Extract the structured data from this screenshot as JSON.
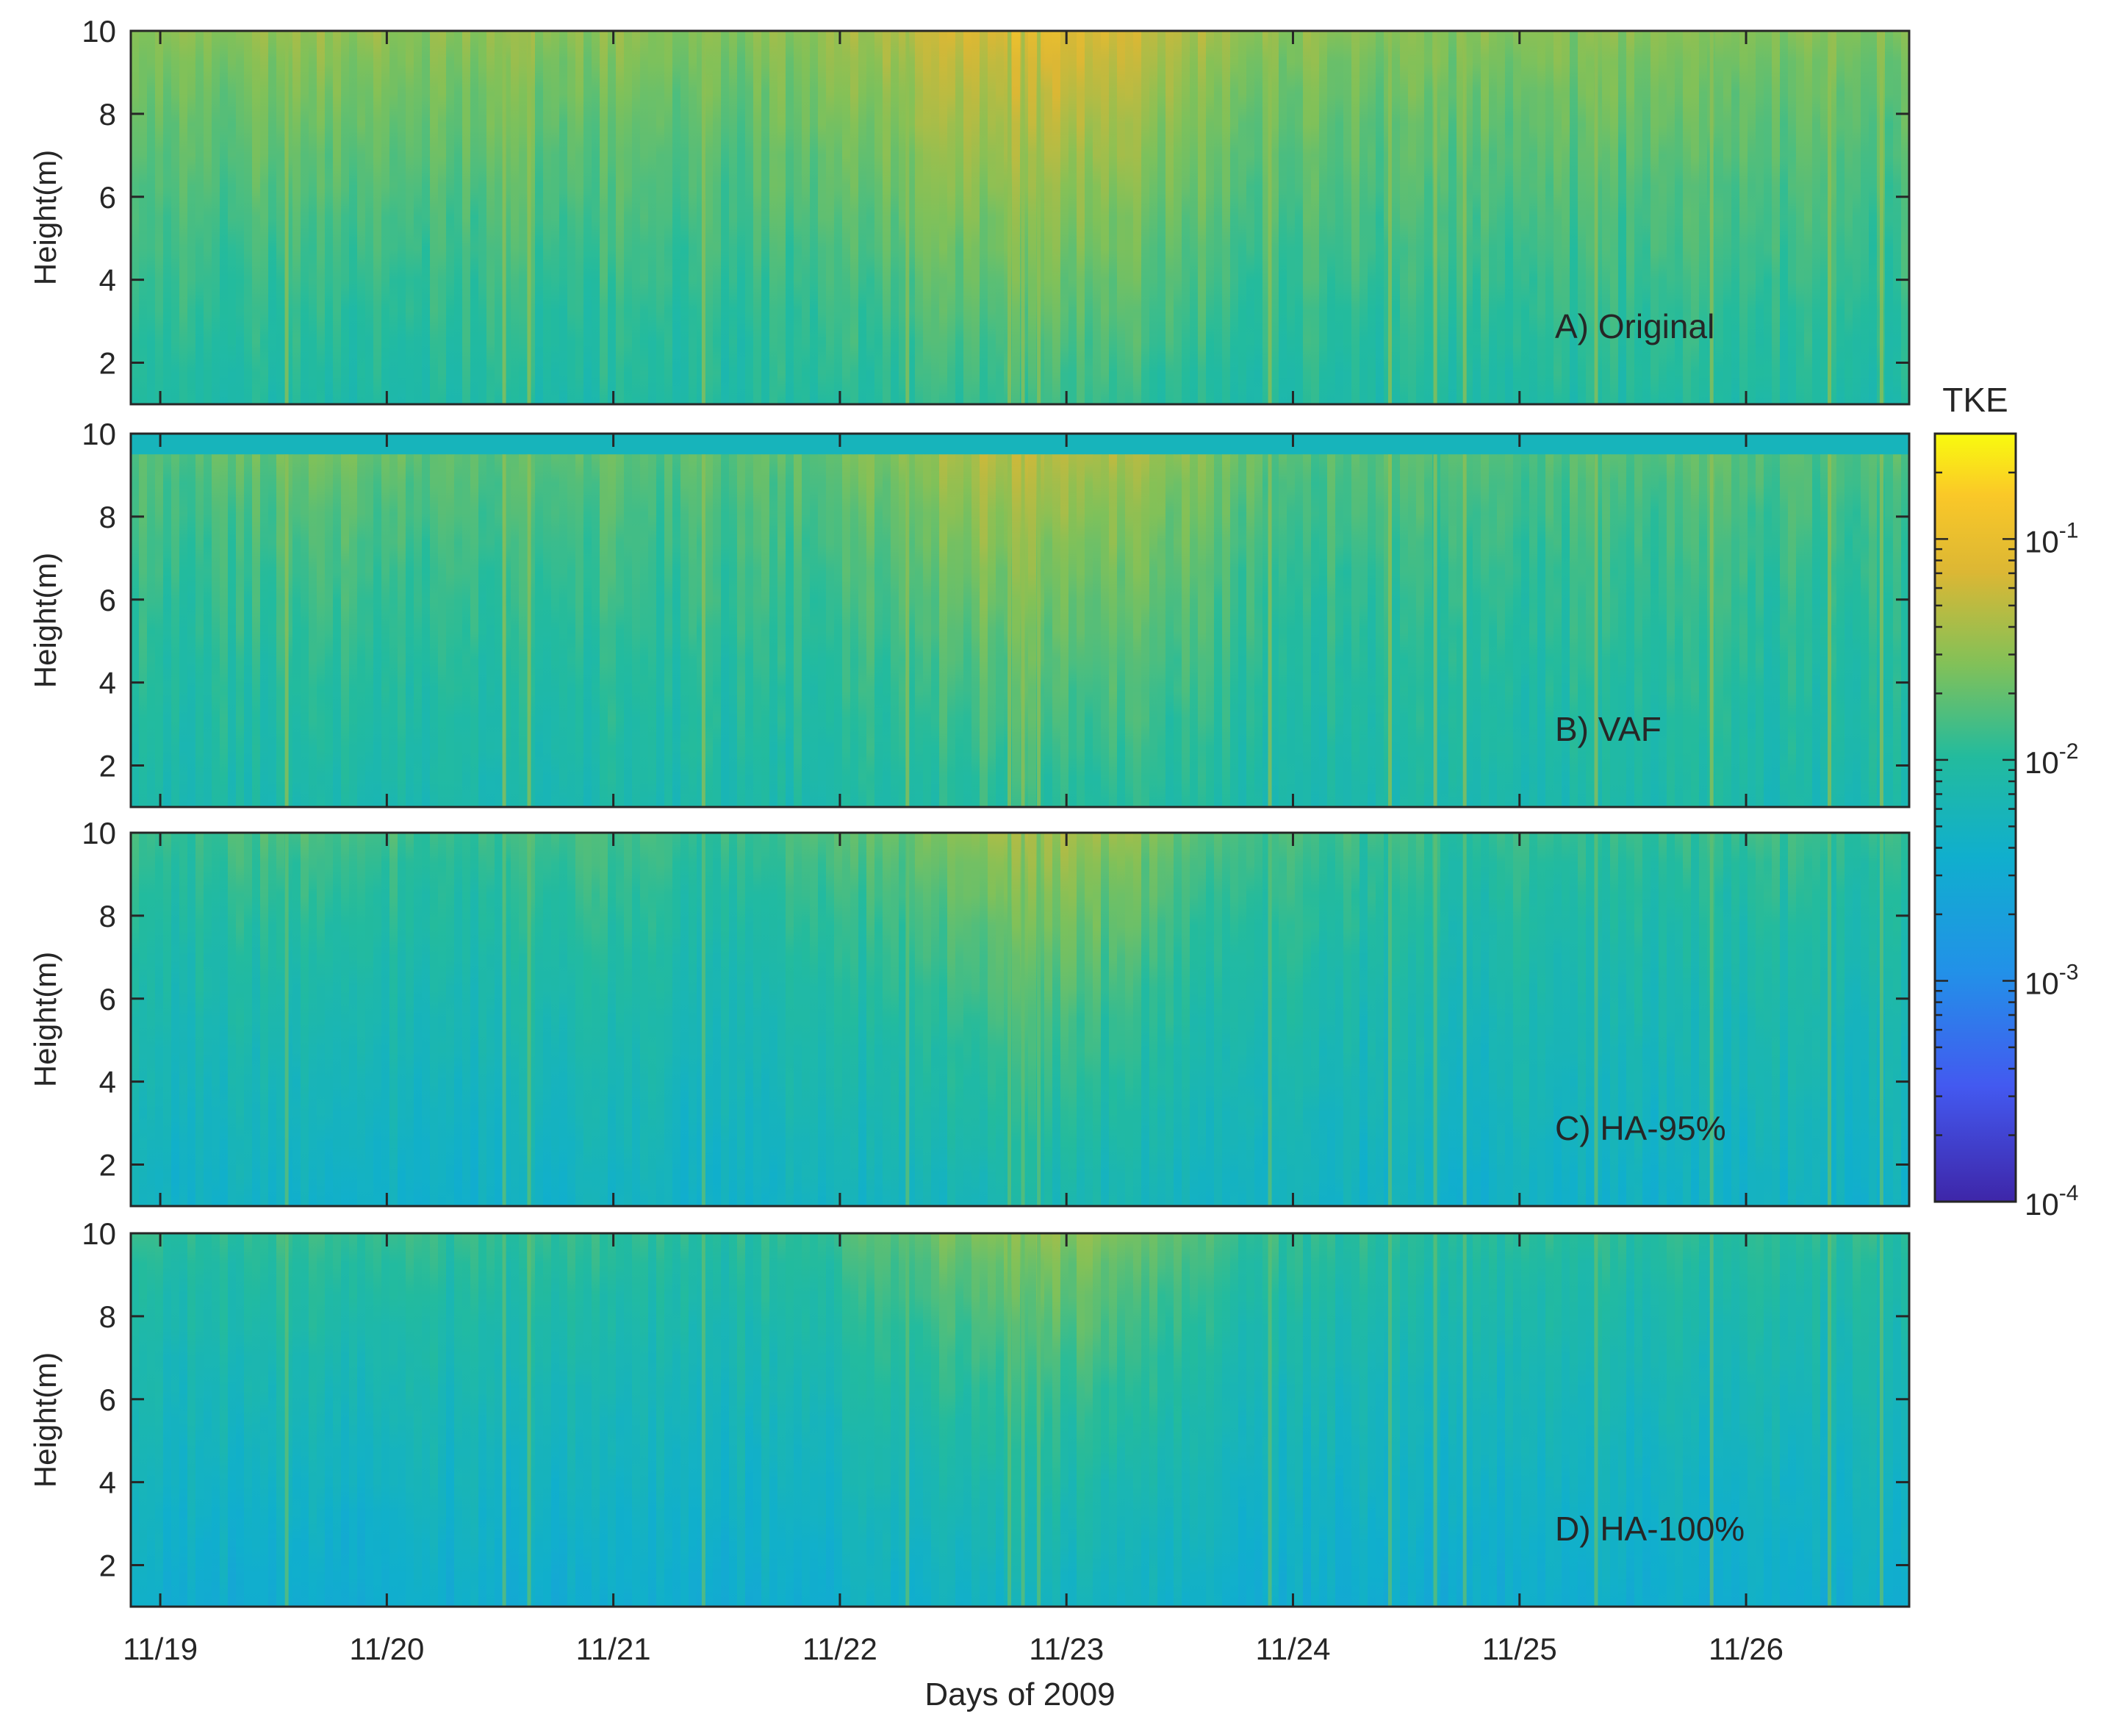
{
  "chart_data": {
    "type": "heatmap",
    "xlabel": "Days of 2009",
    "x_ticks": [
      "11/19",
      "11/20",
      "11/21",
      "11/22",
      "11/23",
      "11/24",
      "11/25",
      "11/26"
    ],
    "x_range_days": [
      0,
      7.85
    ],
    "panels": [
      {
        "label": "A) Original",
        "ylabel": "Height(m)",
        "yticks": [
          "2",
          "4",
          "6",
          "8",
          "10"
        ],
        "ylim": [
          1,
          10
        ]
      },
      {
        "label": "B) VAF",
        "ylabel": "Height(m)",
        "yticks": [
          "2",
          "4",
          "6",
          "8",
          "10"
        ],
        "ylim": [
          1,
          10
        ]
      },
      {
        "label": "C) HA-95%",
        "ylabel": "Height(m)",
        "yticks": [
          "2",
          "4",
          "6",
          "8",
          "10"
        ],
        "ylim": [
          1,
          10
        ]
      },
      {
        "label": "D) HA-100%",
        "ylabel": "Height(m)",
        "yticks": [
          "2",
          "4",
          "6",
          "8",
          "10"
        ],
        "ylim": [
          1,
          10
        ]
      }
    ],
    "colorbar": {
      "title": "TKE",
      "scale": "log",
      "range": [
        0.0001,
        0.3
      ],
      "tick_labels": [
        {
          "base": "10",
          "exp": "-1",
          "value": 0.1
        },
        {
          "base": "10",
          "exp": "-2",
          "value": 0.01
        },
        {
          "base": "10",
          "exp": "-3",
          "value": 0.001
        },
        {
          "base": "10",
          "exp": "-4",
          "value": 0.0001
        }
      ]
    }
  }
}
